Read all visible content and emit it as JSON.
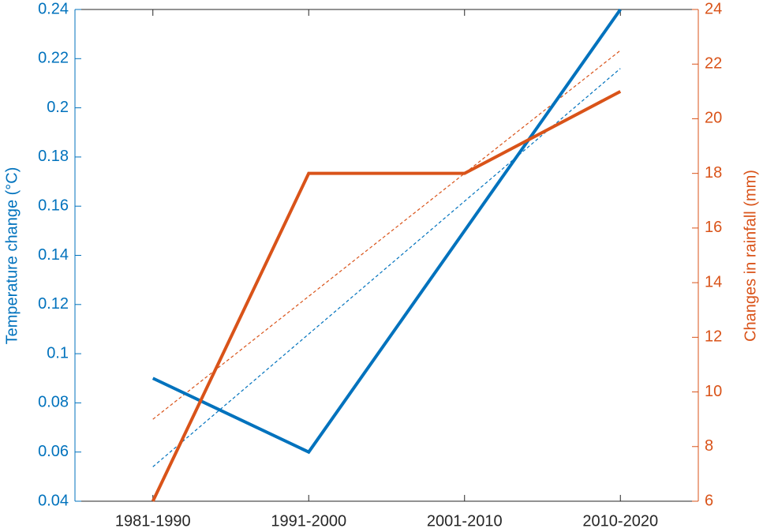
{
  "chart_data": {
    "type": "line",
    "categories": [
      "1981-1990",
      "1991-2000",
      "2001-2010",
      "2010-2020"
    ],
    "ylabel": "Temperature change (°C)",
    "y2label": "Changes in rainfall (mm)",
    "ylim": [
      0.04,
      0.24
    ],
    "yticks": [
      0.04,
      0.06,
      0.08,
      0.1,
      0.12,
      0.14,
      0.16,
      0.18,
      0.2,
      0.22,
      0.24
    ],
    "y2lim": [
      6,
      24
    ],
    "y2ticks": [
      6,
      8,
      10,
      12,
      14,
      16,
      18,
      20,
      22,
      24
    ],
    "ycolor": "#0072bd",
    "y2color": "#d95319",
    "series": [
      {
        "color": "#0072bd",
        "values": [
          0.09,
          0.06,
          0.15,
          0.24
        ],
        "width": 4
      },
      {
        "color": "#d95319",
        "values": [
          6,
          18,
          18,
          21
        ],
        "axis": "y2",
        "width": 4
      },
      {
        "color": "#0072bd",
        "values": [
          0.054,
          0.108,
          0.162,
          0.216
        ],
        "dashed": true,
        "width": 1.2
      },
      {
        "color": "#d95319",
        "values": [
          9,
          13.5,
          18,
          22.5
        ],
        "axis": "y2",
        "dashed": true,
        "width": 1.2
      }
    ]
  }
}
